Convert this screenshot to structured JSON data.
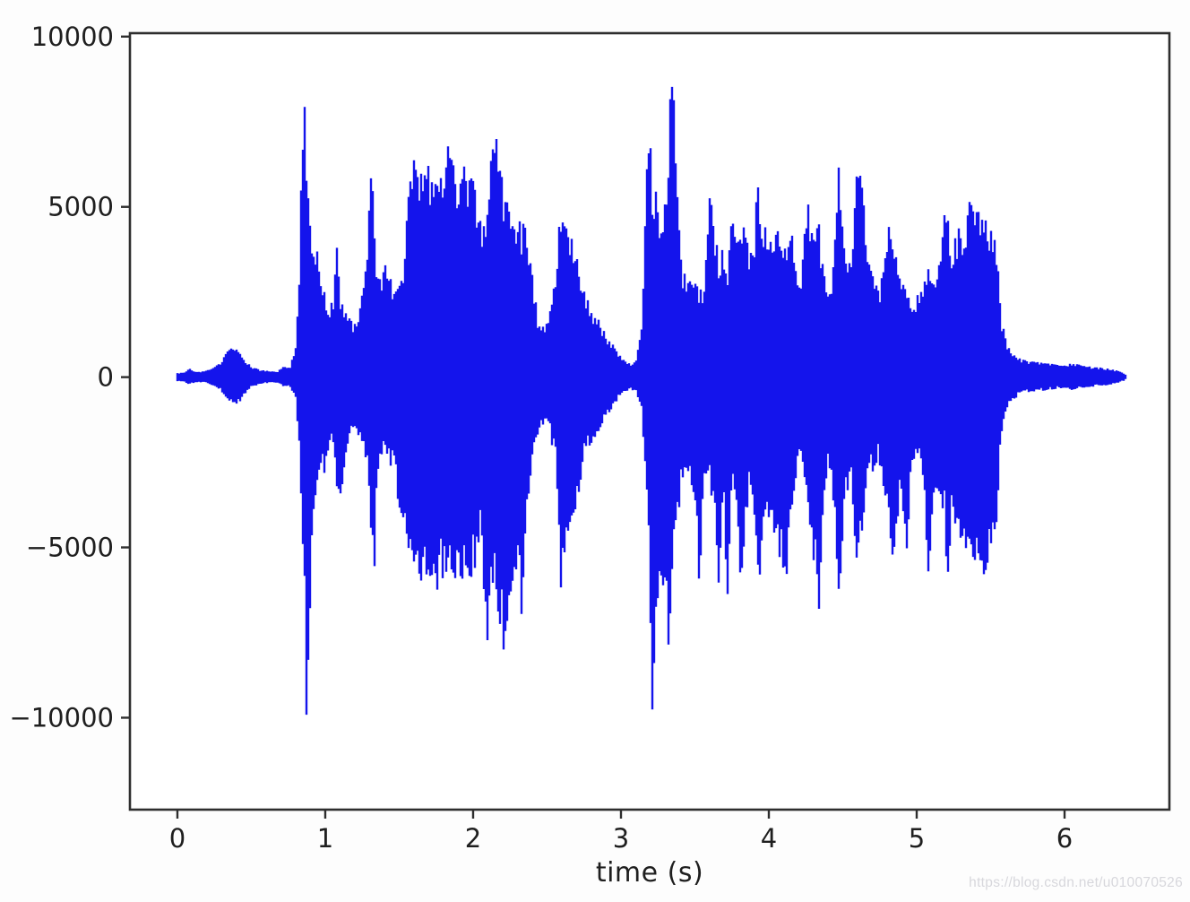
{
  "figure": {
    "watermark": "https://blog.csdn.net/u010070526"
  },
  "style": {
    "waveform_color": "#1414ec",
    "axis_color": "#2e2e2e",
    "tick_label_color": "#1f1f1f",
    "plot_background": "#ffffff",
    "watermark_color": "#d7d7dc"
  },
  "chart_data": {
    "type": "line",
    "subtype": "audio-waveform",
    "title": "",
    "xlabel": "time (s)",
    "ylabel": "",
    "legend": null,
    "grid": false,
    "xlim": [
      -0.321,
      6.709
    ],
    "ylim": [
      -12700,
      10100
    ],
    "xticks": [
      0,
      1,
      2,
      3,
      4,
      5,
      6
    ],
    "yticks": [
      -10000,
      -5000,
      0,
      5000,
      10000
    ],
    "signal_start_s": 0.0,
    "signal_end_s": 6.42,
    "peak_max": 9100,
    "peak_min": -11500,
    "envelope_format": [
      "time_s",
      "min_amplitude",
      "max_amplitude"
    ],
    "envelope": [
      [
        0.0,
        -120,
        120
      ],
      [
        0.05,
        -140,
        150
      ],
      [
        0.08,
        -230,
        260
      ],
      [
        0.12,
        -150,
        160
      ],
      [
        0.18,
        -160,
        170
      ],
      [
        0.24,
        -240,
        260
      ],
      [
        0.3,
        -430,
        480
      ],
      [
        0.34,
        -650,
        780
      ],
      [
        0.38,
        -820,
        900
      ],
      [
        0.42,
        -760,
        720
      ],
      [
        0.46,
        -480,
        500
      ],
      [
        0.5,
        -300,
        330
      ],
      [
        0.56,
        -200,
        220
      ],
      [
        0.62,
        -170,
        180
      ],
      [
        0.68,
        -160,
        170
      ],
      [
        0.72,
        -280,
        350
      ],
      [
        0.76,
        -250,
        280
      ],
      [
        0.8,
        -700,
        900
      ],
      [
        0.82,
        -1800,
        2500
      ],
      [
        0.84,
        -3800,
        6500
      ],
      [
        0.86,
        -6500,
        8300
      ],
      [
        0.875,
        -11500,
        6200
      ],
      [
        0.89,
        -8000,
        4800
      ],
      [
        0.91,
        -4500,
        4300
      ],
      [
        0.94,
        -3200,
        3900
      ],
      [
        0.97,
        -2600,
        3200
      ],
      [
        1.0,
        -2900,
        2400
      ],
      [
        1.03,
        -2100,
        1900
      ],
      [
        1.06,
        -1900,
        2600
      ],
      [
        1.08,
        -3300,
        4200
      ],
      [
        1.1,
        -3700,
        2600
      ],
      [
        1.13,
        -2600,
        2100
      ],
      [
        1.16,
        -1700,
        1800
      ],
      [
        1.2,
        -1500,
        1600
      ],
      [
        1.24,
        -1900,
        2200
      ],
      [
        1.28,
        -2600,
        3500
      ],
      [
        1.31,
        -4600,
        7100
      ],
      [
        1.33,
        -6400,
        4600
      ],
      [
        1.35,
        -2800,
        3400
      ],
      [
        1.38,
        -2400,
        3100
      ],
      [
        1.41,
        -2300,
        3400
      ],
      [
        1.44,
        -2600,
        2900
      ],
      [
        1.47,
        -2900,
        2700
      ],
      [
        1.5,
        -4100,
        2600
      ],
      [
        1.53,
        -4400,
        3600
      ],
      [
        1.56,
        -5000,
        5200
      ],
      [
        1.6,
        -5600,
        6600
      ],
      [
        1.63,
        -6200,
        5800
      ],
      [
        1.66,
        -6500,
        6100
      ],
      [
        1.7,
        -6100,
        6300
      ],
      [
        1.73,
        -6600,
        5700
      ],
      [
        1.76,
        -6300,
        5900
      ],
      [
        1.8,
        -5900,
        6100
      ],
      [
        1.83,
        -5700,
        6800
      ],
      [
        1.86,
        -6100,
        6300
      ],
      [
        1.9,
        -6300,
        5900
      ],
      [
        1.93,
        -6000,
        6400
      ],
      [
        1.96,
        -5800,
        6000
      ],
      [
        2.0,
        -5900,
        6100
      ],
      [
        2.03,
        -5300,
        5400
      ],
      [
        2.06,
        -4600,
        4300
      ],
      [
        2.09,
        -8500,
        4800
      ],
      [
        2.12,
        -6000,
        6800
      ],
      [
        2.15,
        -6300,
        7300
      ],
      [
        2.18,
        -7200,
        6400
      ],
      [
        2.21,
        -8500,
        5600
      ],
      [
        2.24,
        -6700,
        5100
      ],
      [
        2.27,
        -6200,
        4900
      ],
      [
        2.3,
        -5400,
        4700
      ],
      [
        2.33,
        -7500,
        4500
      ],
      [
        2.36,
        -4200,
        4600
      ],
      [
        2.4,
        -2600,
        3000
      ],
      [
        2.44,
        -1600,
        1700
      ],
      [
        2.48,
        -1400,
        1500
      ],
      [
        2.52,
        -1700,
        1900
      ],
      [
        2.56,
        -2600,
        3300
      ],
      [
        2.59,
        -6400,
        4900
      ],
      [
        2.62,
        -5200,
        4400
      ],
      [
        2.66,
        -4100,
        4300
      ],
      [
        2.7,
        -3900,
        3600
      ],
      [
        2.74,
        -2600,
        2800
      ],
      [
        2.78,
        -2100,
        2300
      ],
      [
        2.82,
        -1800,
        1900
      ],
      [
        2.86,
        -1500,
        1600
      ],
      [
        2.9,
        -1200,
        1300
      ],
      [
        2.94,
        -900,
        1000
      ],
      [
        2.98,
        -650,
        700
      ],
      [
        3.02,
        -450,
        500
      ],
      [
        3.06,
        -380,
        400
      ],
      [
        3.1,
        -400,
        450
      ],
      [
        3.14,
        -1000,
        1500
      ],
      [
        3.17,
        -3000,
        6000
      ],
      [
        3.19,
        -5500,
        8500
      ],
      [
        3.21,
        -10100,
        5800
      ],
      [
        3.24,
        -6900,
        5500
      ],
      [
        3.27,
        -5800,
        5000
      ],
      [
        3.3,
        -6500,
        5600
      ],
      [
        3.33,
        -8800,
        8000
      ],
      [
        3.35,
        -6000,
        9100
      ],
      [
        3.38,
        -4600,
        5400
      ],
      [
        3.41,
        -3100,
        3400
      ],
      [
        3.44,
        -2700,
        2900
      ],
      [
        3.47,
        -3000,
        2800
      ],
      [
        3.5,
        -3600,
        2900
      ],
      [
        3.53,
        -6300,
        2600
      ],
      [
        3.56,
        -2900,
        2800
      ],
      [
        3.6,
        -3200,
        5300
      ],
      [
        3.63,
        -4200,
        4700
      ],
      [
        3.66,
        -6100,
        3400
      ],
      [
        3.69,
        -3600,
        4300
      ],
      [
        3.72,
        -6500,
        3000
      ],
      [
        3.75,
        -2900,
        4800
      ],
      [
        3.78,
        -3600,
        4500
      ],
      [
        3.81,
        -6200,
        4600
      ],
      [
        3.84,
        -4400,
        4300
      ],
      [
        3.87,
        -3200,
        3600
      ],
      [
        3.9,
        -3800,
        4200
      ],
      [
        3.93,
        -6700,
        6100
      ],
      [
        3.96,
        -4800,
        4500
      ],
      [
        4.0,
        -4300,
        4400
      ],
      [
        4.04,
        -5000,
        4600
      ],
      [
        4.08,
        -5500,
        4300
      ],
      [
        4.12,
        -6300,
        4000
      ],
      [
        4.15,
        -4100,
        4400
      ],
      [
        4.18,
        -3000,
        3400
      ],
      [
        4.22,
        -2200,
        2600
      ],
      [
        4.25,
        -3200,
        5400
      ],
      [
        4.28,
        -4400,
        4800
      ],
      [
        4.31,
        -5800,
        4300
      ],
      [
        4.34,
        -6900,
        4600
      ],
      [
        4.37,
        -4200,
        3100
      ],
      [
        4.4,
        -2500,
        2700
      ],
      [
        4.44,
        -3800,
        3400
      ],
      [
        4.47,
        -7000,
        6900
      ],
      [
        4.5,
        -4600,
        5200
      ],
      [
        4.53,
        -3400,
        3800
      ],
      [
        4.56,
        -3100,
        3300
      ],
      [
        4.6,
        -6300,
        6800
      ],
      [
        4.63,
        -4800,
        6500
      ],
      [
        4.66,
        -3200,
        3600
      ],
      [
        4.7,
        -2800,
        3000
      ],
      [
        4.74,
        -2400,
        2600
      ],
      [
        4.78,
        -3600,
        3200
      ],
      [
        4.81,
        -4100,
        4400
      ],
      [
        4.84,
        -5600,
        4700
      ],
      [
        4.87,
        -4300,
        3300
      ],
      [
        4.9,
        -3300,
        2900
      ],
      [
        4.93,
        -6200,
        2600
      ],
      [
        4.96,
        -2700,
        2400
      ],
      [
        5.0,
        -2200,
        2400
      ],
      [
        5.04,
        -3100,
        2700
      ],
      [
        5.08,
        -5800,
        3200
      ],
      [
        5.12,
        -3400,
        2900
      ],
      [
        5.16,
        -3800,
        3600
      ],
      [
        5.19,
        -4200,
        5100
      ],
      [
        5.21,
        -6500,
        4700
      ],
      [
        5.24,
        -3600,
        3800
      ],
      [
        5.28,
        -5300,
        4500
      ],
      [
        5.32,
        -4800,
        4400
      ],
      [
        5.36,
        -6100,
        5200
      ],
      [
        5.39,
        -5400,
        5500
      ],
      [
        5.42,
        -5200,
        4900
      ],
      [
        5.45,
        -5900,
        4700
      ],
      [
        5.48,
        -5500,
        4900
      ],
      [
        5.51,
        -5200,
        4400
      ],
      [
        5.54,
        -4300,
        4000
      ],
      [
        5.57,
        -1700,
        1800
      ],
      [
        5.61,
        -900,
        950
      ],
      [
        5.66,
        -650,
        700
      ],
      [
        5.7,
        -500,
        550
      ],
      [
        5.75,
        -450,
        480
      ],
      [
        5.8,
        -420,
        450
      ],
      [
        5.85,
        -400,
        420
      ],
      [
        5.9,
        -380,
        400
      ],
      [
        5.95,
        -340,
        360
      ],
      [
        6.0,
        -320,
        340
      ],
      [
        6.05,
        -380,
        420
      ],
      [
        6.1,
        -350,
        380
      ],
      [
        6.15,
        -300,
        320
      ],
      [
        6.2,
        -280,
        300
      ],
      [
        6.25,
        -260,
        280
      ],
      [
        6.3,
        -230,
        250
      ],
      [
        6.35,
        -180,
        200
      ],
      [
        6.4,
        -110,
        120
      ],
      [
        6.42,
        -50,
        50
      ]
    ]
  }
}
